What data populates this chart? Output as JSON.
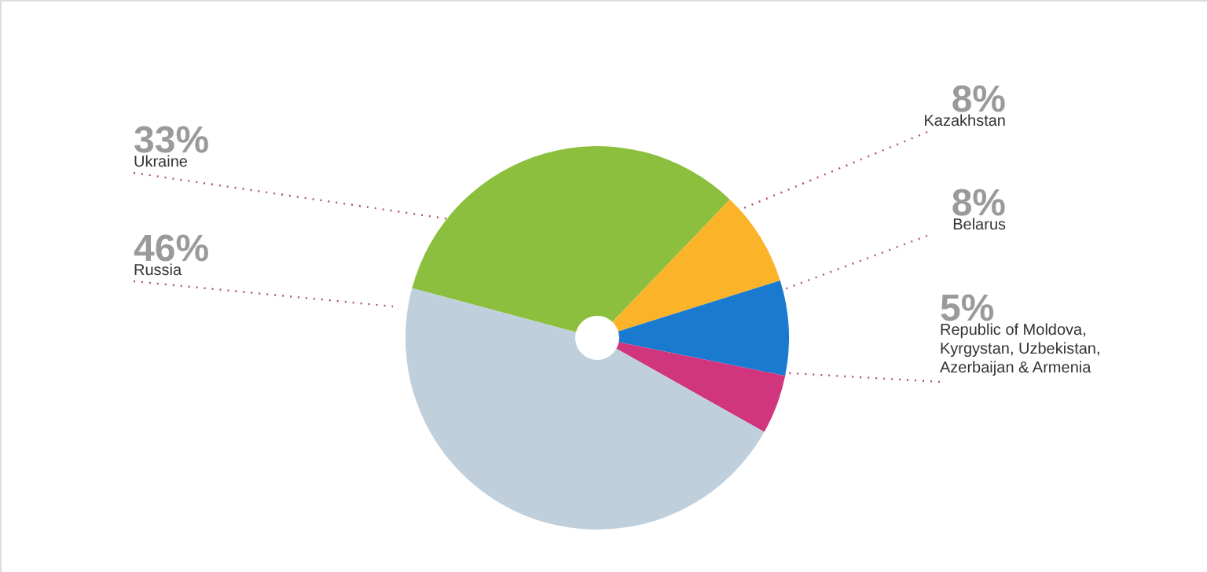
{
  "chart_data": {
    "type": "pie",
    "categories": [
      "Ukraine",
      "Kazakhstan",
      "Belarus",
      "Republic of Moldova, Kyrgystan, Uzbekistan, Azerbaijan & Armenia",
      "Russia"
    ],
    "values": [
      33,
      8,
      8,
      5,
      46
    ],
    "colors": [
      "#8dbf3f",
      "#fbb42a",
      "#1a7ad0",
      "#d0357d",
      "#bfcfdc"
    ],
    "value_labels": [
      "33%",
      "8%",
      "8%",
      "5%",
      "46%"
    ]
  }
}
